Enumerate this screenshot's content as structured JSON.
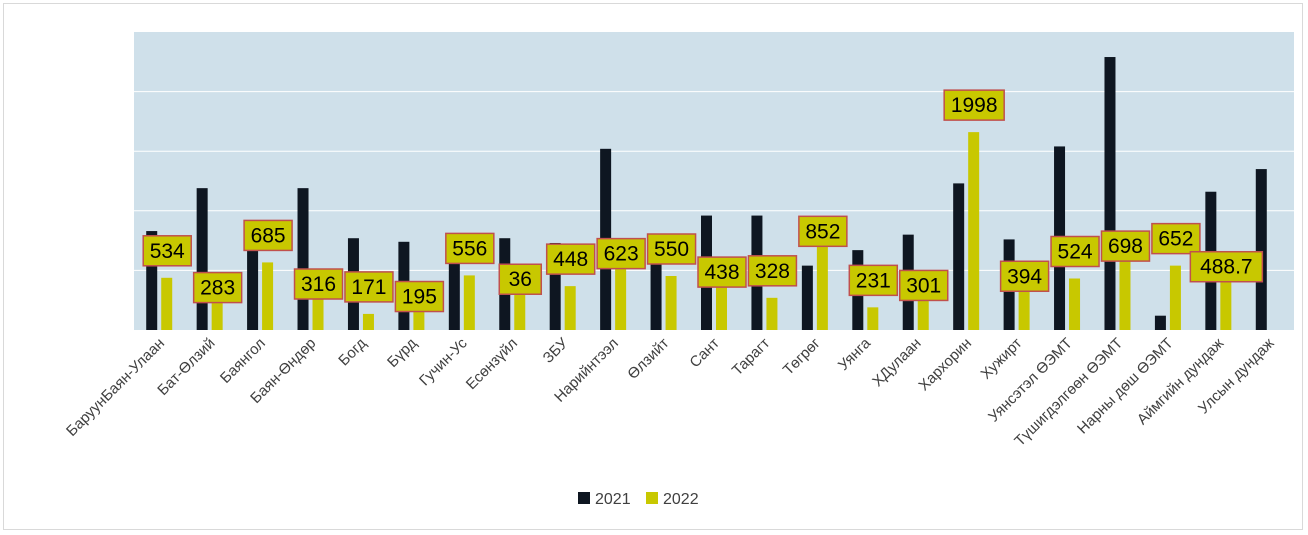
{
  "chart_data": {
    "type": "bar",
    "categories": [
      "БаруунБаян-Улаан",
      "Бат-Өлзий",
      "Баянгол",
      "Баян-Өндөр",
      "Богд",
      "Бүрд",
      "Гучин-Ус",
      "Есөнзүйл",
      "ЗБУ",
      "Нарийнтээл",
      "Өлзийт",
      "Сант",
      "Тарагт",
      "Төгрөг",
      "Уянга",
      "ХДулаан",
      "Хархорин",
      "Хужирт",
      "Уянсэтэл ӨЭМТ",
      "Түшигдэлгөөн ӨЭМТ",
      "Нарны дөш ӨЭМТ",
      "Аймгийн дундаж",
      "Улсын дундаж"
    ],
    "series": [
      {
        "name": "2021",
        "color": "#0e1621",
        "values": [
          830,
          1190,
          720,
          1190,
          770,
          740,
          740,
          770,
          730,
          1520,
          720,
          960,
          960,
          540,
          670,
          800,
          1230,
          760,
          1540,
          2290,
          120,
          1160,
          1350
        ]
      },
      {
        "name": "2022",
        "color": "#c8c800",
        "values": [
          438,
          230,
          567,
          260,
          135,
          155,
          458,
          300,
          368,
          515,
          453,
          360,
          270,
          702,
          190,
          248,
          1660,
          325,
          432,
          578,
          540,
          405,
          null
        ]
      }
    ],
    "data_labels": [
      "534",
      "283",
      "685",
      "316",
      "171",
      "195",
      "556",
      "36",
      "448",
      "623",
      "550",
      "438",
      "328",
      "852",
      "231",
      "301",
      "1998",
      "394",
      "524",
      "698",
      "652",
      "488.7",
      ""
    ],
    "ylim": [
      0,
      2500
    ],
    "grid": true,
    "legend": {
      "position": "bottom",
      "entries": [
        "2021",
        "2022"
      ]
    },
    "colors": {
      "plot_background": "#cfe0ea",
      "gridline": "#ffffff",
      "label_box_fill": "#c8c800",
      "label_box_border": "#c0504d"
    }
  }
}
